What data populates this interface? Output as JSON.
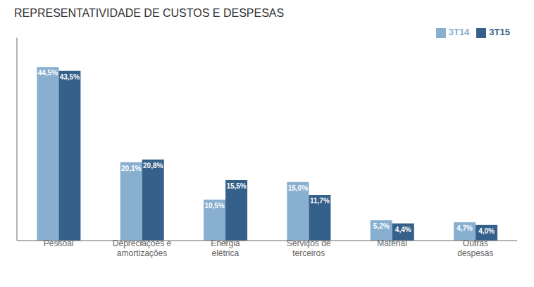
{
  "chart_data": {
    "type": "bar",
    "title": "REPRESENTATIVIDADE  DE CUSTOS E DESPESAS",
    "categories": [
      "Pessoal",
      "Depreciações e\namortizações",
      "Energia\nelétrica",
      "Serviços de\nterceiros",
      "Material",
      "Outras\ndespesas"
    ],
    "series": [
      {
        "name": "3T14",
        "color": "#88aed0",
        "values": [
          44.5,
          20.1,
          10.5,
          15.0,
          5.2,
          4.7
        ],
        "value_labels": [
          "44,5%",
          "20,1%",
          "10,5%",
          "15,0%",
          "5,2%",
          "4,7%"
        ]
      },
      {
        "name": "3T15",
        "color": "#34608a",
        "values": [
          43.5,
          20.8,
          15.5,
          11.7,
          4.4,
          4.0
        ],
        "value_labels": [
          "43,5%",
          "20,8%",
          "15,5%",
          "11,7%",
          "4,4%",
          "4,0%"
        ]
      }
    ],
    "ylim": [
      0,
      52
    ],
    "grid": false,
    "legend": "upper right",
    "data_labels": true,
    "tick_labels": "x"
  }
}
